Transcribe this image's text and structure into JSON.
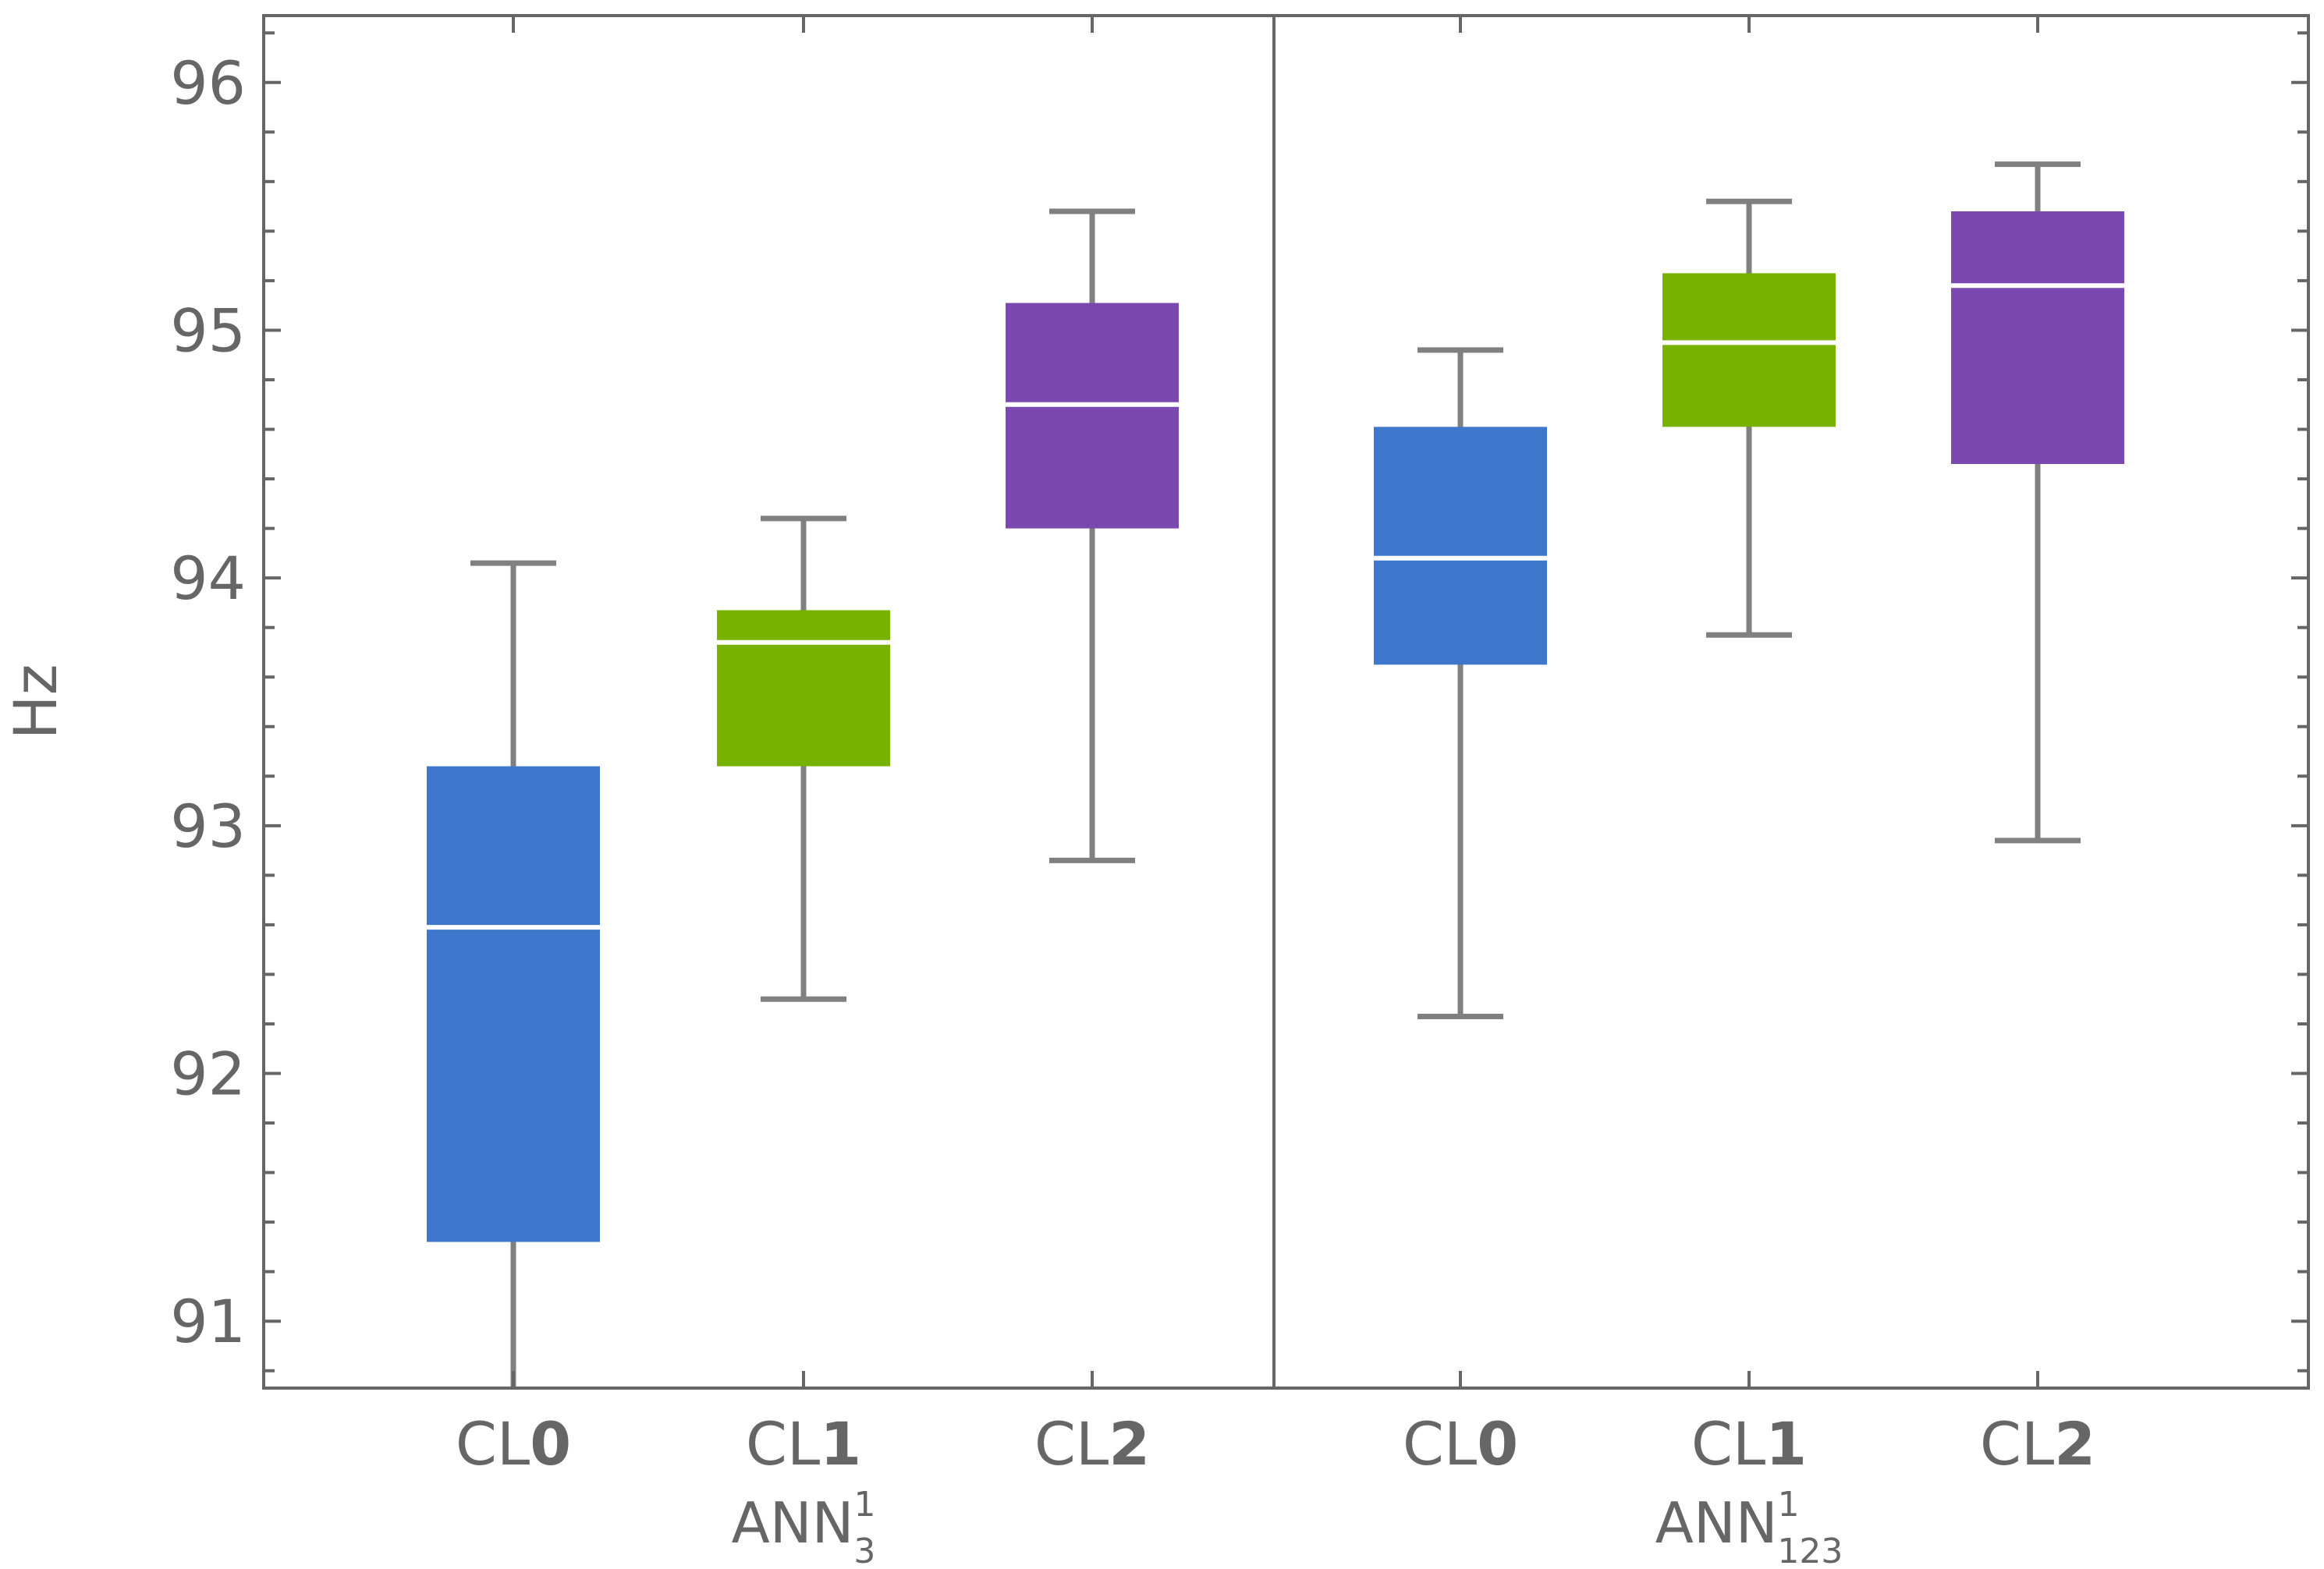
{
  "chart_data": {
    "type": "box",
    "ylabel": "Hz",
    "yticks": [
      "91",
      "92",
      "93",
      "94",
      "95",
      "96"
    ],
    "ylim": [
      90.73,
      96.27
    ],
    "colors": {
      "CL0": "#3d78cd",
      "CL1": "#78b200",
      "CL2": "#7b47b1",
      "axis": "#666666",
      "whisker": "#808080",
      "median": "#ffffff"
    },
    "groups": [
      {
        "name": "ANN",
        "sup": "1",
        "sub": "3",
        "boxes": [
          {
            "prefix": "CL",
            "num": "0",
            "color_key": "CL0",
            "whisker_low": 90.6,
            "q1": 91.32,
            "median": 92.59,
            "q3": 93.24,
            "whisker_high": 94.06
          },
          {
            "prefix": "CL",
            "num": "1",
            "color_key": "CL1",
            "whisker_low": 92.3,
            "q1": 93.24,
            "median": 93.74,
            "q3": 93.87,
            "whisker_high": 94.24
          },
          {
            "prefix": "CL",
            "num": "2",
            "color_key": "CL2",
            "whisker_low": 92.86,
            "q1": 94.2,
            "median": 94.7,
            "q3": 95.11,
            "whisker_high": 95.48
          }
        ]
      },
      {
        "name": "ANN",
        "sup": "1",
        "sub": "123",
        "boxes": [
          {
            "prefix": "CL",
            "num": "0",
            "color_key": "CL0",
            "whisker_low": 92.23,
            "q1": 93.65,
            "median": 94.08,
            "q3": 94.61,
            "whisker_high": 94.92
          },
          {
            "prefix": "CL",
            "num": "1",
            "color_key": "CL1",
            "whisker_low": 93.77,
            "q1": 94.61,
            "median": 94.95,
            "q3": 95.23,
            "whisker_high": 95.52
          },
          {
            "prefix": "CL",
            "num": "2",
            "color_key": "CL2",
            "whisker_low": 92.94,
            "q1": 94.46,
            "median": 95.18,
            "q3": 95.48,
            "whisker_high": 95.67
          }
        ]
      }
    ]
  }
}
